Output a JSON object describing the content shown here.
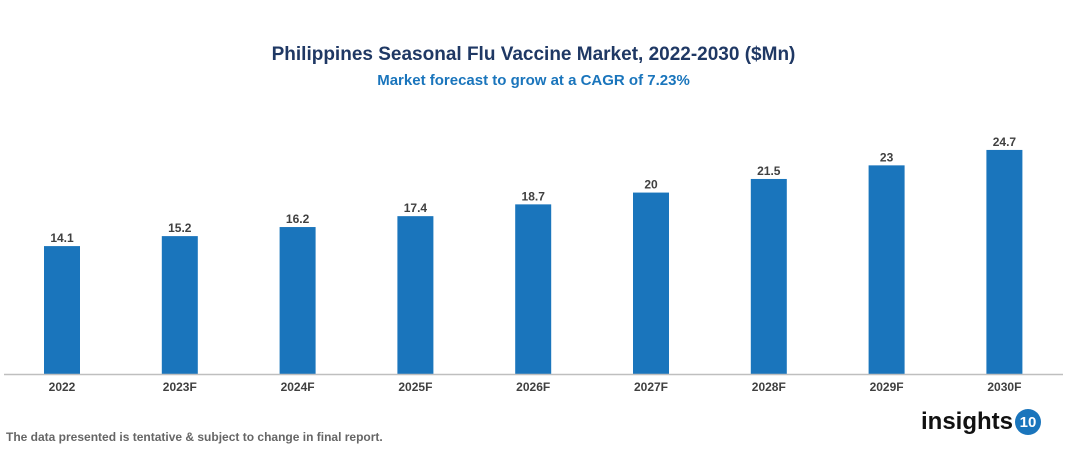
{
  "chart_data": {
    "type": "bar",
    "title": "Philippines Seasonal Flu Vaccine Market, 2022-2030 ($Mn)",
    "subtitle": "Market forecast to grow at a CAGR of 7.23%",
    "categories": [
      "2022",
      "2023F",
      "2024F",
      "2025F",
      "2026F",
      "2027F",
      "2028F",
      "2029F",
      "2030F"
    ],
    "values": [
      14.1,
      15.2,
      16.2,
      17.4,
      18.7,
      20,
      21.5,
      23,
      24.7
    ],
    "xlabel": "",
    "ylabel": "",
    "ylim": [
      0,
      28
    ],
    "grid": false,
    "data_labels": true,
    "bar_color": "#1a75bc"
  },
  "footer": {
    "note": "The data presented is tentative & subject to change in final report.",
    "logo_text": "insights",
    "logo_badge": "10"
  }
}
